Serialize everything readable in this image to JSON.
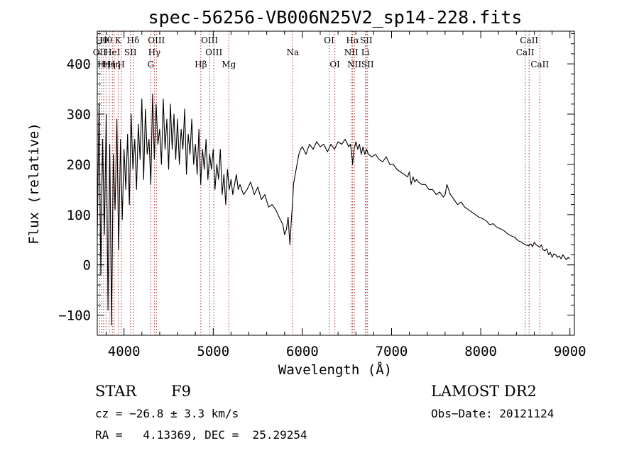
{
  "chart_data": {
    "type": "line",
    "title": "spec-56256-VB006N25V2_sp14-228.fits",
    "xlabel": "Wavelength (Å)",
    "ylabel": "Flux (relative)",
    "xlim": [
      3700,
      9050
    ],
    "ylim": [
      -140,
      465
    ],
    "x_ticks": [
      4000,
      5000,
      6000,
      7000,
      8000,
      9000
    ],
    "x_tick_labels": [
      "4000",
      "5000",
      "6000",
      "7000",
      "8000",
      "9000"
    ],
    "y_ticks": [
      -100,
      0,
      100,
      200,
      300,
      400
    ],
    "y_tick_labels": [
      "−100",
      "0",
      "100",
      "200",
      "300",
      "400"
    ],
    "grid": false,
    "series": [
      {
        "color": "#000000",
        "x": [
          3700,
          3720,
          3740,
          3760,
          3780,
          3800,
          3820,
          3840,
          3860,
          3880,
          3900,
          3920,
          3940,
          3960,
          3980,
          4000,
          4020,
          4040,
          4060,
          4080,
          4100,
          4120,
          4140,
          4160,
          4180,
          4200,
          4220,
          4240,
          4260,
          4280,
          4300,
          4320,
          4340,
          4360,
          4380,
          4400,
          4420,
          4440,
          4460,
          4480,
          4500,
          4520,
          4540,
          4560,
          4580,
          4600,
          4620,
          4640,
          4660,
          4680,
          4700,
          4720,
          4740,
          4760,
          4780,
          4800,
          4820,
          4840,
          4860,
          4880,
          4900,
          4920,
          4940,
          4960,
          4980,
          5000,
          5020,
          5040,
          5060,
          5080,
          5100,
          5120,
          5140,
          5160,
          5180,
          5200,
          5220,
          5240,
          5260,
          5280,
          5300,
          5340,
          5380,
          5420,
          5460,
          5500,
          5540,
          5580,
          5620,
          5660,
          5700,
          5740,
          5780,
          5800,
          5820,
          5840,
          5860,
          5880,
          5890,
          5900,
          5920,
          5940,
          5960,
          5980,
          6000,
          6040,
          6080,
          6120,
          6160,
          6200,
          6240,
          6280,
          6320,
          6360,
          6400,
          6440,
          6480,
          6520,
          6540,
          6560,
          6563,
          6580,
          6600,
          6620,
          6640,
          6660,
          6680,
          6700,
          6720,
          6740,
          6780,
          6820,
          6860,
          6900,
          6940,
          6980,
          7020,
          7060,
          7100,
          7140,
          7180,
          7200,
          7220,
          7240,
          7260,
          7280,
          7300,
          7340,
          7380,
          7420,
          7460,
          7500,
          7540,
          7580,
          7600,
          7620,
          7640,
          7660,
          7700,
          7740,
          7780,
          7820,
          7860,
          7900,
          7940,
          7980,
          8020,
          8060,
          8100,
          8140,
          8180,
          8220,
          8260,
          8300,
          8340,
          8380,
          8420,
          8460,
          8500,
          8540,
          8560,
          8580,
          8600,
          8620,
          8640,
          8660,
          8680,
          8700,
          8720,
          8740,
          8760,
          8780,
          8800,
          8820,
          8840,
          8860,
          8880,
          8900,
          8920,
          8940,
          8960,
          8980,
          9000
        ],
        "y": [
          60,
          320,
          -20,
          250,
          60,
          300,
          -90,
          240,
          -120,
          220,
          110,
          290,
          30,
          250,
          90,
          230,
          150,
          260,
          120,
          300,
          190,
          250,
          150,
          280,
          210,
          330,
          170,
          310,
          220,
          250,
          160,
          340,
          210,
          320,
          240,
          270,
          200,
          330,
          230,
          290,
          190,
          320,
          230,
          300,
          210,
          290,
          200,
          270,
          230,
          310,
          180,
          260,
          220,
          290,
          200,
          240,
          180,
          270,
          160,
          230,
          190,
          250,
          170,
          220,
          190,
          230,
          150,
          200,
          170,
          230,
          140,
          180,
          120,
          190,
          150,
          170,
          140,
          160,
          180,
          150,
          160,
          140,
          150,
          165,
          140,
          155,
          130,
          140,
          115,
          120,
          110,
          95,
          80,
          60,
          70,
          95,
          40,
          100,
          120,
          160,
          180,
          200,
          220,
          230,
          235,
          220,
          240,
          230,
          245,
          235,
          240,
          225,
          240,
          230,
          245,
          240,
          250,
          235,
          240,
          210,
          200,
          230,
          245,
          230,
          240,
          220,
          235,
          220,
          230,
          220,
          215,
          220,
          210,
          205,
          215,
          200,
          200,
          190,
          185,
          180,
          175,
          185,
          160,
          175,
          165,
          170,
          165,
          160,
          160,
          150,
          150,
          140,
          145,
          135,
          140,
          160,
          150,
          140,
          130,
          120,
          125,
          115,
          110,
          105,
          100,
          95,
          92,
          88,
          80,
          82,
          75,
          72,
          68,
          62,
          58,
          55,
          48,
          45,
          40,
          38,
          42,
          36,
          45,
          40,
          38,
          35,
          40,
          30,
          28,
          32,
          20,
          25,
          15,
          22,
          20,
          15,
          18,
          12,
          20,
          15,
          10,
          15,
          12
        ]
      }
    ],
    "lines": [
      {
        "x": 3727,
        "label": "OII",
        "row": 2
      },
      {
        "x": 3750,
        "label": "Hθ",
        "row": 1
      },
      {
        "x": 3771,
        "label": "Hη",
        "row": 3
      },
      {
        "x": 3798,
        "label": "Hθ",
        "row": 1
      },
      {
        "x": 3835,
        "label": "Hη",
        "row": 3
      },
      {
        "x": 3869,
        "label": "HeI",
        "row": 2
      },
      {
        "x": 3889,
        "label": "Hη",
        "row": 3
      },
      {
        "x": 3934,
        "label": "K",
        "row": 1
      },
      {
        "x": 3968,
        "label": "H",
        "row": 3
      },
      {
        "x": 4072,
        "label": "SII",
        "row": 2
      },
      {
        "x": 4102,
        "label": "Hδ",
        "row": 1
      },
      {
        "x": 4300,
        "label": "G",
        "row": 3
      },
      {
        "x": 4340,
        "label": "Hγ",
        "row": 2
      },
      {
        "x": 4363,
        "label": "OIII",
        "row": 1
      },
      {
        "x": 4861,
        "label": "Hβ",
        "row": 3
      },
      {
        "x": 4959,
        "label": "OIII",
        "row": 1
      },
      {
        "x": 5007,
        "label": "OIII",
        "row": 2
      },
      {
        "x": 5175,
        "label": "Mg",
        "row": 3
      },
      {
        "x": 5893,
        "label": "Na",
        "row": 2
      },
      {
        "x": 6300,
        "label": "OI",
        "row": 1
      },
      {
        "x": 6364,
        "label": "OI",
        "row": 3
      },
      {
        "x": 6548,
        "label": "NII",
        "row": 2
      },
      {
        "x": 6563,
        "label": "Hα",
        "row": 1
      },
      {
        "x": 6583,
        "label": "NII",
        "row": 3
      },
      {
        "x": 6707,
        "label": "Li",
        "row": 2
      },
      {
        "x": 6716,
        "label": "SII",
        "row": 1
      },
      {
        "x": 6731,
        "label": "SII",
        "row": 3
      },
      {
        "x": 8498,
        "label": "CaII",
        "row": 2
      },
      {
        "x": 8542,
        "label": "CaII",
        "row": 1
      },
      {
        "x": 8662,
        "label": "CaII",
        "row": 3
      }
    ]
  },
  "info": {
    "class": "STAR",
    "subclass": "F9",
    "survey": "LAMOST DR2",
    "redshift": "cz = −26.8 ± 3.3 km/s",
    "obs_date": "Obs−Date: 20121124",
    "coords": "RA =   4.13369, DEC =  25.29254"
  }
}
